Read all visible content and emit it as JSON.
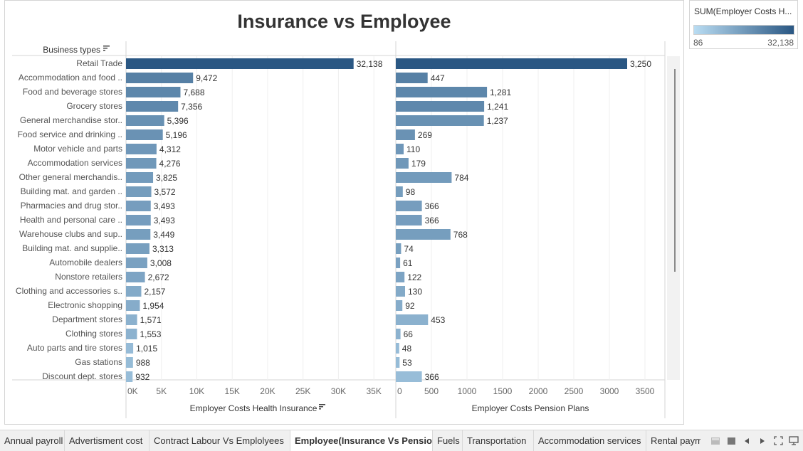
{
  "title": "Insurance vs Employee",
  "header": {
    "dimension_label": "Business types",
    "sort_icon": "sort-descending-icon"
  },
  "legend": {
    "title": "SUM(Employer Costs H...",
    "min": "86",
    "max": "32,138",
    "color_low": "#b9dcf2",
    "color_high": "#2a5783"
  },
  "chart_data": {
    "type": "bar",
    "orientation": "horizontal",
    "categories": [
      "Retail Trade",
      "Accommodation and food ..",
      "Food and beverage stores",
      "Grocery stores",
      "General merchandise stor..",
      "Food service and drinking ..",
      "Motor vehicle and parts",
      "Accommodation services",
      "Other general merchandis..",
      "Building mat. and garden ..",
      "Pharmacies and drug stor..",
      "Health and personal care ..",
      "Warehouse clubs and sup..",
      "Building mat. and supplie..",
      "Automobile dealers",
      "Nonstore retailers",
      "Clothing and accessories s..",
      "Electronic shopping",
      "Department stores",
      "Clothing stores",
      "Auto parts and tire stores",
      "Gas stations",
      "Discount dept. stores"
    ],
    "series": [
      {
        "name": "Employer Costs Health Insurance",
        "values": [
          32138,
          9472,
          7688,
          7356,
          5396,
          5196,
          4312,
          4276,
          3825,
          3572,
          3493,
          3493,
          3449,
          3313,
          3008,
          2672,
          2157,
          1954,
          1571,
          1553,
          1015,
          988,
          932
        ],
        "labels": [
          "32,138",
          "9,472",
          "7,688",
          "7,356",
          "5,396",
          "5,196",
          "4,312",
          "4,276",
          "3,825",
          "3,572",
          "3,493",
          "3,493",
          "3,449",
          "3,313",
          "3,008",
          "2,672",
          "2,157",
          "1,954",
          "1,571",
          "1,553",
          "1,015",
          "988",
          "932"
        ],
        "xlim": [
          0,
          38000
        ],
        "ticks": [
          0,
          5000,
          10000,
          15000,
          20000,
          25000,
          30000,
          35000
        ],
        "tick_labels": [
          "0K",
          "5K",
          "10K",
          "15K",
          "20K",
          "25K",
          "30K",
          "35K"
        ],
        "xlabel": "Employer Costs Health Insurance"
      },
      {
        "name": "Employer Costs Pension Plans",
        "values": [
          3250,
          447,
          1281,
          1241,
          1237,
          269,
          110,
          179,
          784,
          98,
          366,
          366,
          768,
          74,
          61,
          122,
          130,
          92,
          453,
          66,
          48,
          53,
          366
        ],
        "labels": [
          "3,250",
          "447",
          "1,281",
          "1,241",
          "1,237",
          "269",
          "110",
          "179",
          "784",
          "98",
          "366",
          "366",
          "768",
          "74",
          "61",
          "122",
          "130",
          "92",
          "453",
          "66",
          "48",
          "53",
          "366"
        ],
        "xlim": [
          0,
          3780
        ],
        "ticks": [
          0,
          500,
          1000,
          1500,
          2000,
          2500,
          3000,
          3500
        ],
        "tick_labels": [
          "0",
          "500",
          "1000",
          "1500",
          "2000",
          "2500",
          "3000",
          "3500"
        ],
        "xlabel": "Employer Costs Pension Plans"
      }
    ],
    "color_field_range": [
      86,
      32138
    ],
    "grid": true
  },
  "tabs": [
    {
      "label": "Annual payroll",
      "active": false
    },
    {
      "label": "Advertisment cost",
      "active": false
    },
    {
      "label": "Contract Labour Vs Emplolyees",
      "active": false
    },
    {
      "label": "Employee(Insurance Vs Pensio...",
      "active": true
    },
    {
      "label": "Fuels",
      "active": false
    },
    {
      "label": "Transportation",
      "active": false
    },
    {
      "label": "Accommodation services",
      "active": false
    },
    {
      "label": "Rental paym",
      "active": false
    }
  ],
  "controls": [
    "grid-view-icon",
    "filmstrip-icon",
    "prev-sheet-icon",
    "next-sheet-icon",
    "fullscreen-icon",
    "presentation-icon"
  ]
}
